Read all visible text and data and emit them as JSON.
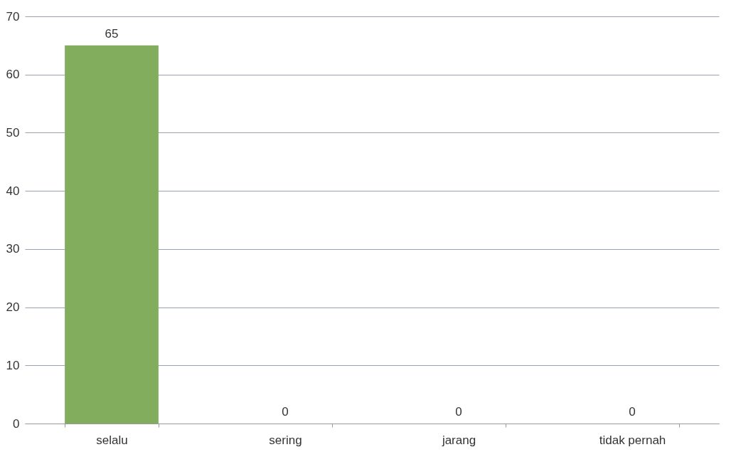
{
  "chart_data": {
    "type": "bar",
    "categories": [
      "selalu",
      "sering",
      "jarang",
      "tidak pernah"
    ],
    "values": [
      65,
      0,
      0,
      0
    ],
    "color": "#82ad5c",
    "ylim": [
      0,
      70
    ],
    "yticks": [
      0,
      10,
      20,
      30,
      40,
      50,
      60,
      70
    ],
    "grid": "y",
    "data_labels": true
  }
}
